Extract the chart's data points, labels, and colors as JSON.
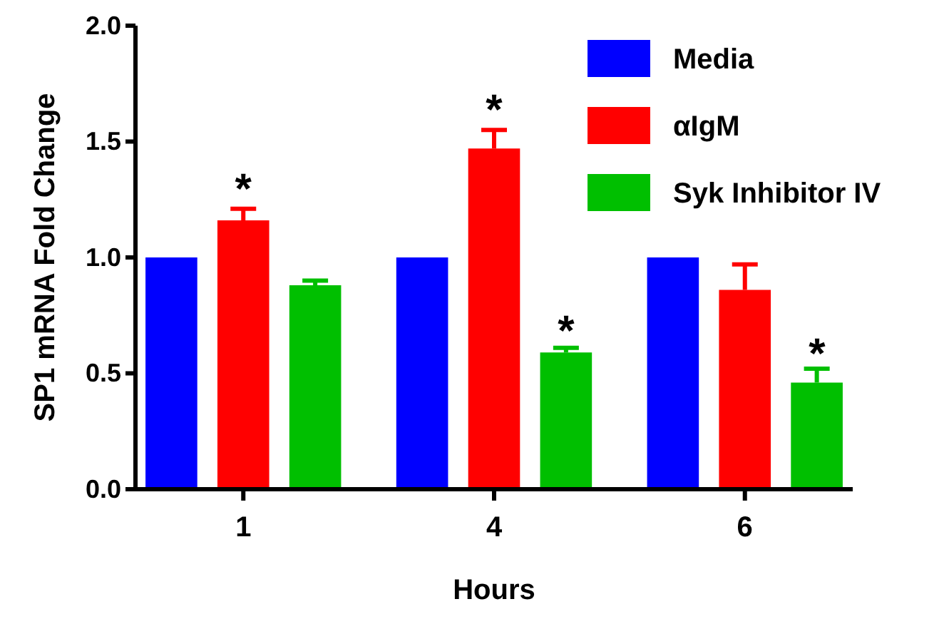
{
  "chart_data": {
    "type": "bar",
    "xlabel": "Hours",
    "ylabel": "SP1 mRNA Fold Change",
    "categories": [
      "1",
      "4",
      "6"
    ],
    "series": [
      {
        "name": "Media",
        "color": "#0000ff",
        "values": [
          1.0,
          1.0,
          1.0
        ]
      },
      {
        "name": "αIgM",
        "color": "#ff0000",
        "values": [
          1.16,
          1.47,
          0.86
        ],
        "errors": [
          [
            1.16,
            1.21
          ],
          [
            1.47,
            1.55
          ],
          [
            0.86,
            0.97
          ]
        ]
      },
      {
        "name": "Syk Inhibitor IV",
        "color": "#00bf00",
        "values": [
          0.88,
          0.59,
          0.46
        ],
        "errors": [
          [
            0.88,
            0.9
          ],
          [
            0.59,
            0.61
          ],
          [
            0.46,
            0.52
          ]
        ]
      }
    ],
    "ylim": [
      0,
      2.0
    ],
    "yticks": [
      {
        "value": 0,
        "label": "0.0"
      },
      {
        "value": 0.5,
        "label": "0.5"
      },
      {
        "value": 1,
        "label": "1.0"
      },
      {
        "value": 1.5,
        "label": "1.5"
      },
      {
        "value": 2,
        "label": "2.0"
      }
    ],
    "legend": "top right",
    "grid": false,
    "annotations": [
      {
        "text": "*",
        "x": "1",
        "y": 1.21
      },
      {
        "text": "*",
        "x": "4",
        "y": 1.55
      },
      "*",
      "*"
    ]
  }
}
